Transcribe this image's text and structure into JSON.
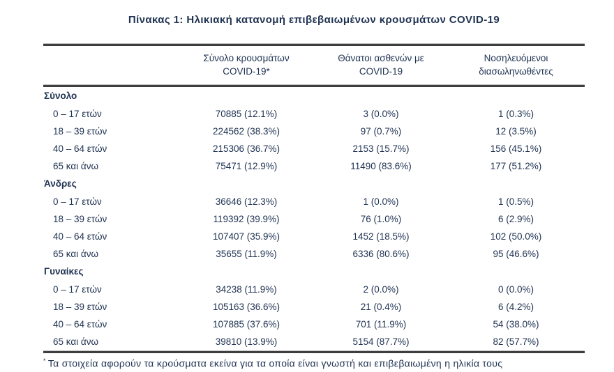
{
  "title": "Πίνακας 1: Ηλικιακή κατανομή επιβεβαιωμένων κρουσμάτων COVID-19",
  "colors": {
    "text": "#213453",
    "rule_dark": "#3e3e3e",
    "rule_light": "#c0c0c0",
    "background": "#ffffff"
  },
  "table": {
    "header": {
      "col_cases": {
        "line1": "Σύνολο κρουσμάτων",
        "line2": "COVID-19*"
      },
      "col_deaths": {
        "line1": "Θάνατοι ασθενών με",
        "line2": "COVID-19"
      },
      "col_intubated": {
        "line1": "Νοσηλευόμενοι",
        "line2": "διασωληνωθέντες"
      }
    },
    "sections": [
      {
        "label": "Σύνολο",
        "rows": [
          {
            "age": "0 – 17 ετών",
            "cases": "70885 (12.1%)",
            "deaths": "3 (0.0%)",
            "intubated": "1 (0.3%)"
          },
          {
            "age": "18 – 39 ετών",
            "cases": "224562 (38.3%)",
            "deaths": "97 (0.7%)",
            "intubated": "12 (3.5%)"
          },
          {
            "age": "40 – 64 ετών",
            "cases": "215306 (36.7%)",
            "deaths": "2153 (15.7%)",
            "intubated": "156 (45.1%)"
          },
          {
            "age": "65 και άνω",
            "cases": "75471 (12.9%)",
            "deaths": "11490 (83.6%)",
            "intubated": "177 (51.2%)"
          }
        ]
      },
      {
        "label": "Άνδρες",
        "rows": [
          {
            "age": "0 – 17 ετών",
            "cases": "36646 (12.3%)",
            "deaths": "1 (0.0%)",
            "intubated": "1 (0.5%)"
          },
          {
            "age": "18 – 39 ετών",
            "cases": "119392 (39.9%)",
            "deaths": "76 (1.0%)",
            "intubated": "6 (2.9%)"
          },
          {
            "age": "40 – 64 ετών",
            "cases": "107407 (35.9%)",
            "deaths": "1452 (18.5%)",
            "intubated": "102 (50.0%)"
          },
          {
            "age": "65 και άνω",
            "cases": "35655 (11.9%)",
            "deaths": "6336 (80.6%)",
            "intubated": "95 (46.6%)"
          }
        ]
      },
      {
        "label": "Γυναίκες",
        "rows": [
          {
            "age": "0 – 17 ετών",
            "cases": "34238 (11.9%)",
            "deaths": "2 (0.0%)",
            "intubated": "0 (0.0%)"
          },
          {
            "age": "18 – 39 ετών",
            "cases": "105163 (36.6%)",
            "deaths": "21 (0.4%)",
            "intubated": "6 (4.2%)"
          },
          {
            "age": "40 – 64 ετών",
            "cases": "107885 (37.6%)",
            "deaths": "701 (11.9%)",
            "intubated": "54 (38.0%)"
          },
          {
            "age": "65 και άνω",
            "cases": "39810 (13.9%)",
            "deaths": "5154 (87.7%)",
            "intubated": "82 (57.7%)"
          }
        ]
      }
    ]
  },
  "footnote": {
    "marker": "*",
    "text": "Τα στοιχεία αφορούν τα κρούσματα εκείνα για τα οποία είναι γνωστή και επιβεβαιωμένη η ηλικία τους"
  }
}
